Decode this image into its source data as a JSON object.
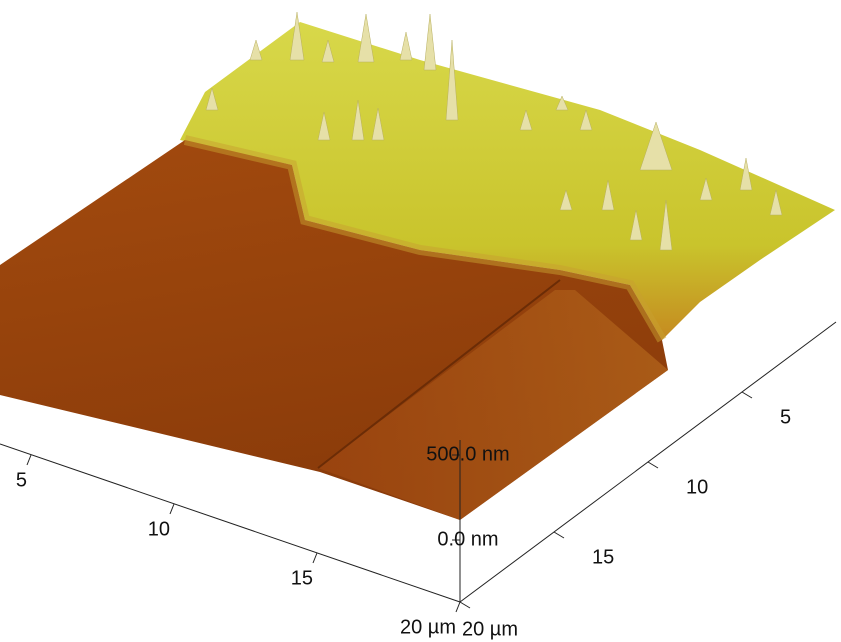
{
  "chart_data": {
    "type": "surface3d",
    "xlim": [
      0,
      20
    ],
    "xticks": [
      5,
      10,
      15,
      {
        "value": 20,
        "label": "20 µm"
      }
    ],
    "ylim": [
      0,
      20
    ],
    "yticks": [
      5,
      10,
      15,
      {
        "value": 20,
        "label": "20 µm"
      }
    ],
    "zlim": [
      0,
      500
    ],
    "zticks": [
      {
        "value": 0,
        "label": "0.0 nm"
      },
      {
        "value": 500,
        "label": "500.0 nm"
      }
    ]
  }
}
